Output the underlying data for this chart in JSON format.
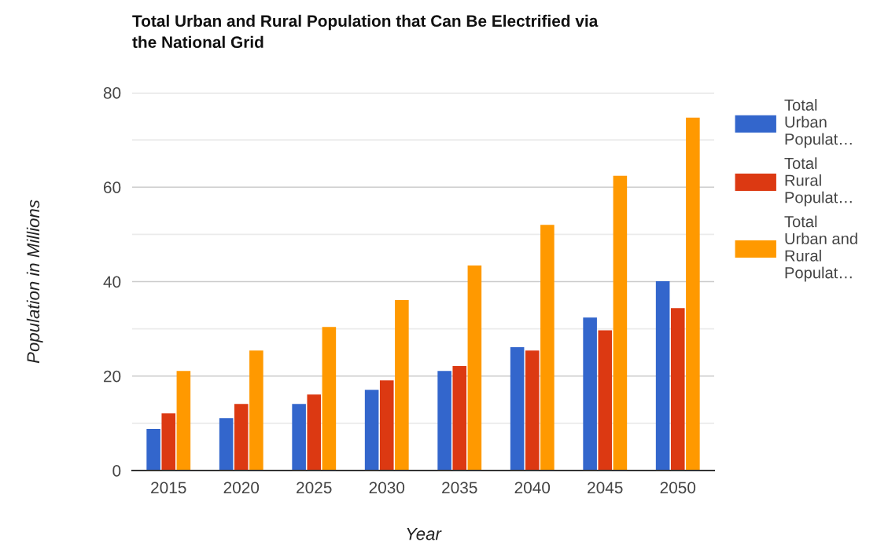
{
  "chart_data": {
    "type": "bar",
    "title": "Total Urban and Rural Population that Can Be Electrified via the National Grid",
    "xlabel": "Year",
    "ylabel": "Population in Millions",
    "categories": [
      "2015",
      "2020",
      "2025",
      "2030",
      "2035",
      "2040",
      "2045",
      "2050"
    ],
    "series": [
      {
        "name": "Total Urban Populat…",
        "color": "#3366cc",
        "values": [
          8.8,
          11.1,
          14.1,
          17.1,
          21.1,
          26.1,
          32.4,
          40.1
        ]
      },
      {
        "name": "Total Rural Populat…",
        "color": "#dc3912",
        "values": [
          12.1,
          14.1,
          16.1,
          19.1,
          22.1,
          25.4,
          29.7,
          34.4
        ]
      },
      {
        "name": "Total Urban and Rural Populat…",
        "color": "#ff9900",
        "values": [
          21.1,
          25.4,
          30.4,
          36.1,
          43.4,
          52.0,
          62.4,
          74.7
        ]
      }
    ],
    "ylim": [
      0,
      80
    ],
    "yticks": [
      0,
      {
        "value": 10,
        "label": null
      },
      20,
      {
        "value": 30,
        "label": null
      },
      40,
      {
        "value": 50,
        "label": null
      },
      60,
      {
        "value": 70,
        "label": null
      },
      80
    ],
    "grid": "y",
    "legend": "right"
  }
}
